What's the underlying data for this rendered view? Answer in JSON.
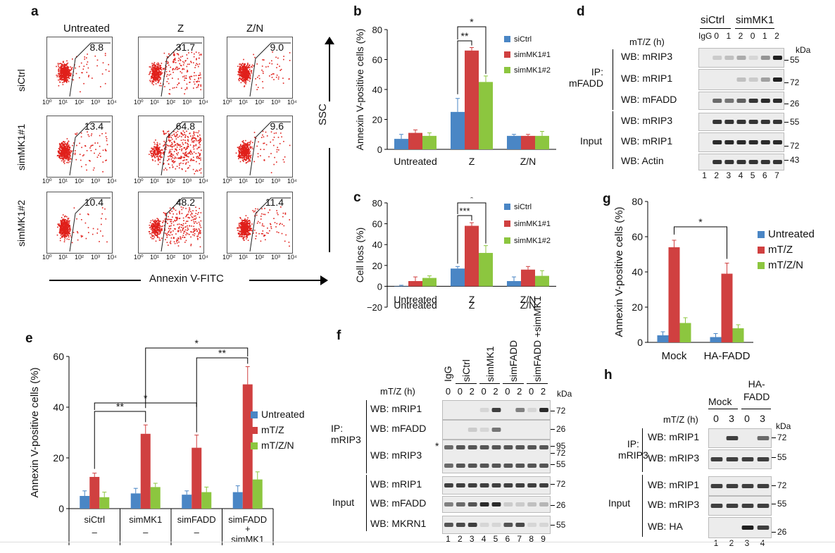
{
  "panel_labels": {
    "a": "a",
    "b": "b",
    "c": "c",
    "d": "d",
    "e": "e",
    "f": "f",
    "g": "g",
    "h": "h"
  },
  "panel_a": {
    "col_headers": [
      "Untreated",
      "Z",
      "Z/N"
    ],
    "row_labels": [
      "siCtrl",
      "simMK1#1",
      "simMK1#2"
    ],
    "values": [
      [
        "8.8",
        "31.7",
        "9.0"
      ],
      [
        "13.4",
        "64.8",
        "9.6"
      ],
      [
        "10.4",
        "48.2",
        "11.4"
      ]
    ],
    "x_ticks": [
      "10⁰",
      "10¹",
      "10²",
      "10³",
      "10⁴"
    ],
    "xlabel": "Annexin V-FITC",
    "ylabel": "SSC",
    "colors": {
      "dots": "#e0201b",
      "axis": "#000000"
    }
  },
  "chart_data": [
    {
      "id": "b",
      "type": "bar",
      "categories": [
        "Untreated",
        "Z",
        "Z/N"
      ],
      "series": [
        {
          "name": "siCtrl",
          "values": [
            7,
            25,
            9
          ],
          "errors": [
            3,
            9,
            1
          ],
          "color": "#4a86c5"
        },
        {
          "name": "simMK1#1",
          "values": [
            11,
            66,
            9
          ],
          "errors": [
            2,
            2,
            1
          ],
          "color": "#d04040"
        },
        {
          "name": "simMK1#2",
          "values": [
            9,
            45,
            9
          ],
          "errors": [
            2,
            4,
            3
          ],
          "color": "#8cc63f"
        }
      ],
      "ylabel": "Annexin V-positive cells (%)",
      "ylim": [
        0,
        80
      ],
      "yticks": [
        0,
        20,
        40,
        60,
        80
      ],
      "legend": "top-right",
      "significance": [
        "*",
        "**"
      ]
    },
    {
      "id": "c",
      "type": "bar",
      "categories": [
        "Untreated",
        "Z",
        "Z/N"
      ],
      "series": [
        {
          "name": "siCtrl",
          "values": [
            0,
            17,
            5
          ],
          "errors": [
            1,
            2,
            4
          ],
          "color": "#4a86c5"
        },
        {
          "name": "simMK1#1",
          "values": [
            5,
            58,
            16
          ],
          "errors": [
            4,
            3,
            3
          ],
          "color": "#d04040"
        },
        {
          "name": "simMK1#2",
          "values": [
            8,
            32,
            10
          ],
          "errors": [
            2,
            7,
            5
          ],
          "color": "#8cc63f"
        }
      ],
      "ylabel": "Cell loss (%)",
      "ylim": [
        -20,
        80
      ],
      "yticks": [
        -20,
        0,
        20,
        40,
        60,
        80
      ],
      "legend": "top-right",
      "significance": [
        "*",
        "***"
      ]
    },
    {
      "id": "e",
      "type": "bar",
      "categories": [
        "siCtrl",
        "simMK1",
        "simFADD",
        "simFADD + simMK1"
      ],
      "sub_labels": [
        "–",
        "–",
        "–",
        "+"
      ],
      "series": [
        {
          "name": "Untreated",
          "values": [
            5,
            6,
            5.5,
            6.5
          ],
          "errors": [
            2,
            2,
            1.5,
            2.5
          ],
          "color": "#4a86c5"
        },
        {
          "name": "mT/Z",
          "values": [
            12.5,
            29.5,
            24,
            49
          ],
          "errors": [
            1.5,
            3.5,
            5,
            7
          ],
          "color": "#d04040"
        },
        {
          "name": "mT/Z/N",
          "values": [
            4.5,
            8.5,
            6.5,
            11.5
          ],
          "errors": [
            2,
            1.5,
            2,
            3
          ],
          "color": "#8cc63f"
        }
      ],
      "ylabel": "Annexin V-positive cells (%)",
      "ylim": [
        0,
        60
      ],
      "yticks": [
        0,
        20,
        40,
        60
      ],
      "legend": "right",
      "significance": [
        "**",
        "*",
        "**",
        "*"
      ]
    },
    {
      "id": "g",
      "type": "bar",
      "categories": [
        "Mock",
        "HA-FADD"
      ],
      "series": [
        {
          "name": "Untreated",
          "values": [
            4,
            3
          ],
          "errors": [
            2,
            2
          ],
          "color": "#4a86c5"
        },
        {
          "name": "mT/Z",
          "values": [
            54,
            39
          ],
          "errors": [
            4,
            6
          ],
          "color": "#d04040"
        },
        {
          "name": "mT/Z/N",
          "values": [
            11,
            8
          ],
          "errors": [
            3,
            2
          ],
          "color": "#8cc63f"
        }
      ],
      "ylabel": "Annexin V-positive cells (%)",
      "ylim": [
        0,
        80
      ],
      "yticks": [
        0,
        20,
        40,
        60,
        80
      ],
      "legend": "top-right",
      "significance": [
        "*"
      ]
    }
  ],
  "panel_d": {
    "group_labels": [
      "siCtrl",
      "simMK1"
    ],
    "time_label": "mT/Z (h)",
    "lane_headers": [
      "IgG",
      "0",
      "1",
      "2",
      "0",
      "1",
      "2"
    ],
    "ip_label": "IP:\nmFADD",
    "input_label": "Input",
    "blots": [
      "WB: mRIP3",
      "WB: mRIP1",
      "WB: mFADD",
      "WB: mRIP3",
      "WB: mRIP1",
      "WB: Actin"
    ],
    "kda_label": "kDa",
    "markers": [
      "55",
      "72",
      "26",
      "55",
      "72",
      "43"
    ],
    "lane_numbers": [
      "1",
      "2",
      "3",
      "4",
      "5",
      "6",
      "7"
    ]
  },
  "panel_f": {
    "col_labels": [
      "IgG",
      "siCtrl",
      "simMK1",
      "simFADD",
      "simFADD +simMK1"
    ],
    "time_label": "mT/Z (h)",
    "lane_headers": [
      "0",
      "0",
      "2",
      "0",
      "2",
      "0",
      "2",
      "0",
      "2"
    ],
    "ip_label": "IP:\nmRIP3",
    "input_label": "Input",
    "blots": [
      "WB: mRIP1",
      "WB: mFADD",
      "WB: mRIP3",
      "WB: mRIP1",
      "WB: mFADD",
      "WB: MKRN1"
    ],
    "kda_label": "kDa",
    "markers": [
      "72",
      "26",
      "95",
      "72",
      "55",
      "72",
      "26",
      "55"
    ],
    "asterisk": "*",
    "lane_numbers": [
      "1",
      "2",
      "3",
      "4",
      "5",
      "6",
      "7",
      "8",
      "9"
    ]
  },
  "panel_h": {
    "group_labels": [
      "Mock",
      "HA-\nFADD"
    ],
    "time_label": "mT/Z (h)",
    "lane_headers": [
      "0",
      "3",
      "0",
      "3"
    ],
    "ip_label": "IP:\nmRIP3",
    "input_label": "Input",
    "blots": [
      "WB: mRIP1",
      "WB: mRIP3",
      "WB: mRIP1",
      "WB: mRIP3",
      "WB: HA"
    ],
    "kda_label": "kDa",
    "markers": [
      "72",
      "55",
      "72",
      "55",
      "26"
    ],
    "lane_numbers": [
      "1",
      "2",
      "3",
      "4"
    ]
  }
}
